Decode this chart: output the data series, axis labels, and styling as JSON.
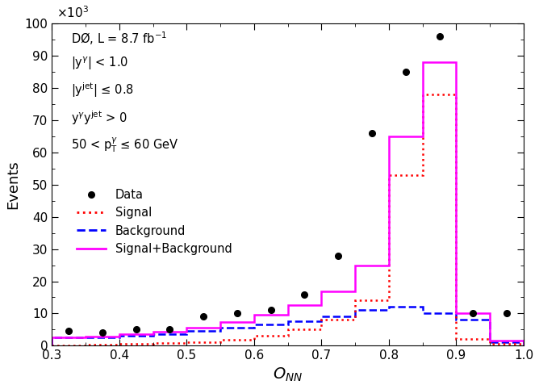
{
  "xlabel": "$O_{NN}$",
  "ylabel": "Events",
  "xlim": [
    0.3,
    1.0
  ],
  "ylim": [
    0,
    100000
  ],
  "yticks": [
    0,
    10000,
    20000,
    30000,
    40000,
    50000,
    60000,
    70000,
    80000,
    90000,
    100000
  ],
  "ytick_labels": [
    "0",
    "10",
    "20",
    "30",
    "40",
    "50",
    "60",
    "70",
    "80",
    "90",
    "100"
  ],
  "bin_edges": [
    0.3,
    0.35,
    0.4,
    0.45,
    0.5,
    0.55,
    0.6,
    0.65,
    0.7,
    0.75,
    0.8,
    0.85,
    0.9,
    0.95,
    1.0
  ],
  "signal_values": [
    200,
    400,
    600,
    800,
    1200,
    1800,
    3000,
    5000,
    8000,
    14000,
    53000,
    78000,
    2000,
    500
  ],
  "background_values": [
    2500,
    2500,
    3000,
    3500,
    4500,
    5500,
    6500,
    7500,
    9000,
    11000,
    12000,
    10000,
    8000,
    1000
  ],
  "total_values": [
    2700,
    2900,
    3600,
    4300,
    5700,
    7300,
    9500,
    12500,
    17000,
    25000,
    65000,
    88000,
    10000,
    1500
  ],
  "data_x": [
    0.325,
    0.375,
    0.425,
    0.475,
    0.525,
    0.575,
    0.625,
    0.675,
    0.725,
    0.775,
    0.825,
    0.875,
    0.925,
    0.975
  ],
  "data_y": [
    4500,
    4000,
    5000,
    5000,
    9000,
    10000,
    11000,
    16000,
    28000,
    66000,
    85000,
    96000,
    10000,
    10000
  ],
  "signal_color": "#ff0000",
  "background_color": "#0000ff",
  "total_color": "#ff00ff",
  "data_color": "#000000",
  "annotation_lines": [
    "DØ, L = 8.7 fb$^{-1}$",
    "|y$^{\\gamma}$| < 1.0",
    "|y$^{\\mathrm{jet}}$| ≤ 0.8",
    "y$^{\\gamma}$y$^{\\mathrm{jet}}$ > 0",
    "50 < p$_{\\mathrm{T}}^{\\gamma}$ ≤ 60 GeV"
  ],
  "xticks": [
    0.3,
    0.4,
    0.5,
    0.6,
    0.7,
    0.8,
    0.9,
    1.0
  ]
}
